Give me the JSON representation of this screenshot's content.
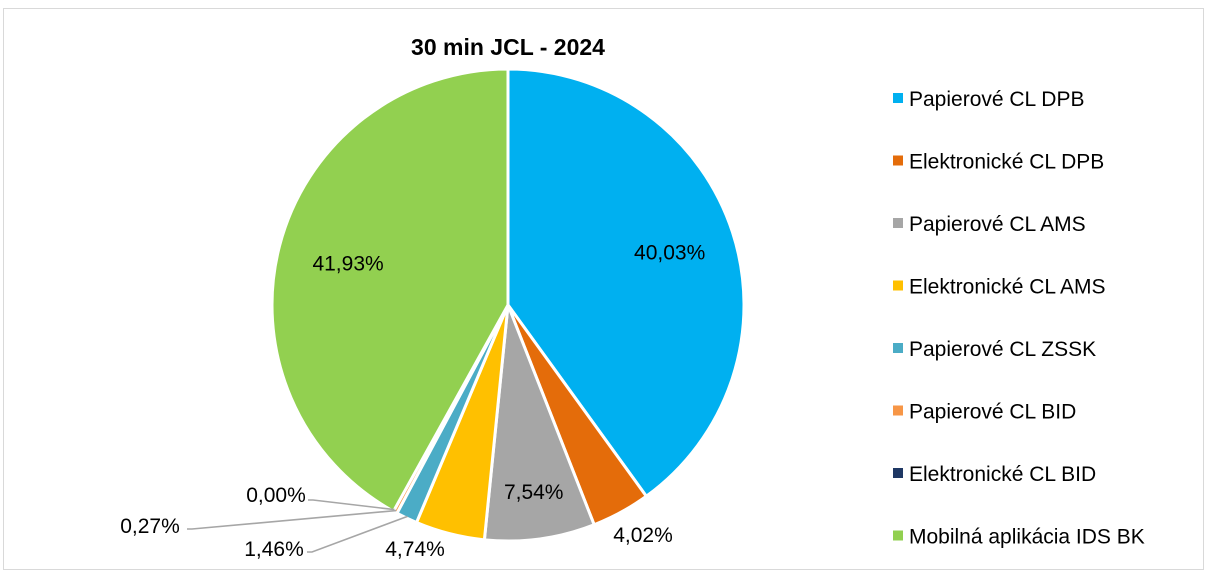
{
  "chart_data": {
    "type": "pie",
    "title": "30 min JCL - 2024",
    "categories": [
      "Papierové CL DPB",
      "Elektronické CL DPB",
      "Papierové CL AMS",
      "Elektronické CL AMS",
      "Papierové CL ZSSK",
      "Papierové CL BID",
      "Elektronické CL BID",
      "Mobilná aplikácia IDS BK"
    ],
    "values": [
      40.03,
      4.02,
      7.54,
      4.74,
      1.46,
      0.27,
      0.0,
      41.93
    ],
    "labels": [
      "40,03%",
      "4,02%",
      "7,54%",
      "4,74%",
      "1,46%",
      "0,27%",
      "0,00%",
      "41,93%"
    ],
    "colors": [
      "#00b0f0",
      "#e46c0a",
      "#a6a6a6",
      "#ffc000",
      "#4bacc6",
      "#f79646",
      "#1f3864",
      "#92d050"
    ],
    "legend_position": "right"
  }
}
